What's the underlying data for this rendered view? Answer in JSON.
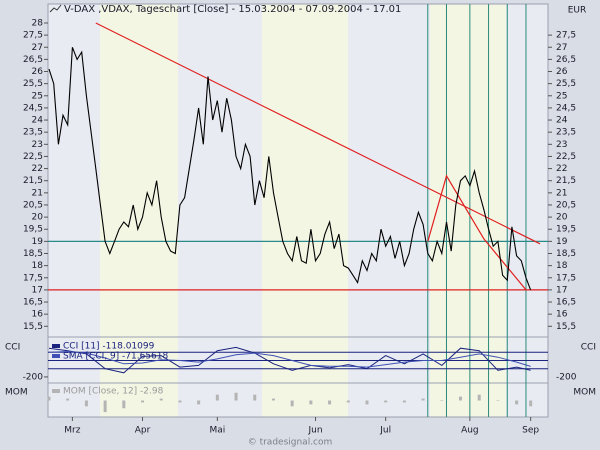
{
  "chart_data": [
    {
      "type": "line",
      "title": "V-DAX ,VDAX, Tageschart [Close] - 15.03.2004 - 07.09.2004 - 17.01",
      "color": "#000000",
      "values": [
        26.1,
        25.5,
        23,
        24.2,
        23.8,
        27,
        26.5,
        26.8,
        25,
        23.5,
        22,
        20.5,
        19,
        18.5,
        19,
        19.5,
        19.8,
        19.6,
        20.5,
        19.5,
        20,
        21,
        20.5,
        21.5,
        20,
        19,
        18.6,
        18.5,
        20.5,
        20.8,
        22,
        23.2,
        24.5,
        23,
        25.8,
        24,
        24.8,
        23.5,
        24.9,
        24,
        22.5,
        22,
        23,
        22.5,
        20.5,
        21.5,
        20.8,
        22.5,
        21,
        20,
        19,
        18.5,
        18.2,
        19.2,
        18.2,
        18.1,
        19.5,
        18.2,
        18.5,
        19.3,
        19.8,
        18.7,
        19.3,
        18,
        17.9,
        17.6,
        17.3,
        18.2,
        17.8,
        18.5,
        18.2,
        19.5,
        18.8,
        19.2,
        18.3,
        19,
        18,
        18.5,
        19.5,
        20.2,
        19.7,
        18.5,
        18.2,
        19,
        18.5,
        19.8,
        18.6,
        20.5,
        21.5,
        21.7,
        21.3,
        21.9,
        21,
        20.3,
        19.5,
        18.8,
        19,
        17.6,
        17.4,
        19.6,
        18.4,
        18.2,
        17.5,
        17
      ],
      "xlim": [
        0,
        105
      ],
      "xticks": [
        {
          "value": 5,
          "label": "Mrz"
        },
        {
          "value": 20,
          "label": "Apr"
        },
        {
          "value": 36,
          "label": "Mai"
        },
        {
          "value": 57,
          "label": "Jun"
        },
        {
          "value": 72,
          "label": "Jul"
        },
        {
          "value": 90,
          "label": "Aug"
        },
        {
          "value": 103,
          "label": "Sep"
        }
      ],
      "ylim": [
        15.1,
        28.7
      ],
      "yticks": [
        {
          "value": 15.5,
          "label": "15,5"
        },
        16,
        {
          "value": 16.5,
          "label": "16,5"
        },
        17,
        {
          "value": 17.5,
          "label": "17,5"
        },
        18,
        {
          "value": 18.5,
          "label": "18,5"
        },
        19,
        {
          "value": 19.5,
          "label": "19,5"
        },
        20,
        {
          "value": 20.5,
          "label": "20,5"
        },
        21,
        {
          "value": 21.5,
          "label": "21,5"
        },
        22,
        {
          "value": 22.5,
          "label": "22,5"
        },
        23,
        {
          "value": 23.5,
          "label": "23,5"
        },
        24,
        {
          "value": 24.5,
          "label": "24,5"
        },
        25,
        {
          "value": 25.5,
          "label": "25,5"
        },
        26,
        {
          "value": 26.5,
          "label": "26,5"
        },
        27,
        {
          "value": 27.5,
          "label": "27,5"
        },
        28
      ],
      "y2label": "EUR",
      "y2lim": [
        15.1,
        28.7
      ],
      "y2ticks": [
        {
          "value": 15.5,
          "label": "15,5"
        },
        16,
        {
          "value": 16.5,
          "label": "16,5"
        },
        17,
        {
          "value": 17.5,
          "label": "17,5"
        },
        18,
        {
          "value": 18.5,
          "label": "18,5"
        },
        19,
        {
          "value": 19.5,
          "label": "19,5"
        },
        20,
        {
          "value": 20.5,
          "label": "20,5"
        },
        21,
        {
          "value": 21.5,
          "label": "21,5"
        },
        22,
        {
          "value": 22.5,
          "label": "22,5"
        },
        23,
        {
          "value": 23.5,
          "label": "23,5"
        },
        24,
        {
          "value": 24.5,
          "label": "24,5"
        },
        25,
        {
          "value": 25.5,
          "label": "25,5"
        },
        26,
        {
          "value": 26.5,
          "label": "26,5"
        },
        27,
        {
          "value": 27.5,
          "label": "27,5"
        }
      ],
      "hlines": [
        {
          "value": 19,
          "color": "#2a8a8a"
        },
        {
          "value": 17,
          "color": "#e02020"
        }
      ],
      "vlines": {
        "values": [
          81,
          85,
          90,
          94,
          98,
          102
        ],
        "color": "#2a8a7a"
      },
      "trendlines": [
        {
          "x": [
            10,
            105
          ],
          "y": [
            28,
            18.9
          ],
          "color": "#e02020"
        },
        {
          "x": [
            81,
            85,
            93,
            102
          ],
          "y": [
            19,
            21.7,
            19.1,
            17
          ],
          "color": "#e02020"
        }
      ]
    },
    {
      "type": "line",
      "label": "CCI",
      "x": [
        0,
        4,
        8,
        12,
        16,
        20,
        24,
        28,
        32,
        36,
        40,
        44,
        48,
        52,
        56,
        60,
        64,
        68,
        72,
        76,
        80,
        84,
        88,
        92,
        96,
        100,
        103
      ],
      "series": [
        {
          "name": "CCI [11] -118.01099",
          "color": "#1a237e",
          "values": [
            150,
            120,
            80,
            -100,
            -150,
            50,
            60,
            -80,
            -60,
            120,
            160,
            90,
            -40,
            -120,
            -60,
            -90,
            -50,
            -100,
            60,
            -40,
            80,
            -60,
            150,
            120,
            -120,
            -80,
            -118
          ]
        },
        {
          "name": "SMA [CCI, 9] -71.65618",
          "color": "#3f51b5",
          "values": [
            100,
            110,
            90,
            30,
            -40,
            -30,
            10,
            0,
            -20,
            20,
            70,
            90,
            60,
            0,
            -60,
            -70,
            -70,
            -80,
            -50,
            -20,
            0,
            0,
            40,
            80,
            40,
            -20,
            -72
          ]
        }
      ],
      "xlim": [
        0,
        105
      ],
      "ylim": [
        -250,
        250
      ],
      "yticks": [
        -200
      ],
      "hlines": [
        100,
        0,
        -100
      ]
    },
    {
      "type": "bar",
      "label": "MOM",
      "x": [
        0,
        4,
        8,
        12,
        16,
        20,
        24,
        28,
        32,
        36,
        40,
        44,
        48,
        52,
        56,
        60,
        64,
        68,
        72,
        76,
        80,
        84,
        88,
        92,
        96,
        100,
        103
      ],
      "series": [
        {
          "name": "MOM [Close, 12] -2.98",
          "color": "#b4b4b4",
          "values": [
            2,
            1,
            -3,
            -6,
            -4,
            -1,
            1,
            -1,
            -2,
            3,
            4,
            3,
            1,
            -3,
            -2,
            -2,
            -1,
            -2,
            -1,
            -1,
            1,
            0,
            2,
            3,
            0,
            -2,
            -2.98
          ]
        }
      ],
      "xlim": [
        0,
        105
      ],
      "ylim": [
        -8,
        8
      ]
    }
  ],
  "footer": "© tradesignal.com"
}
